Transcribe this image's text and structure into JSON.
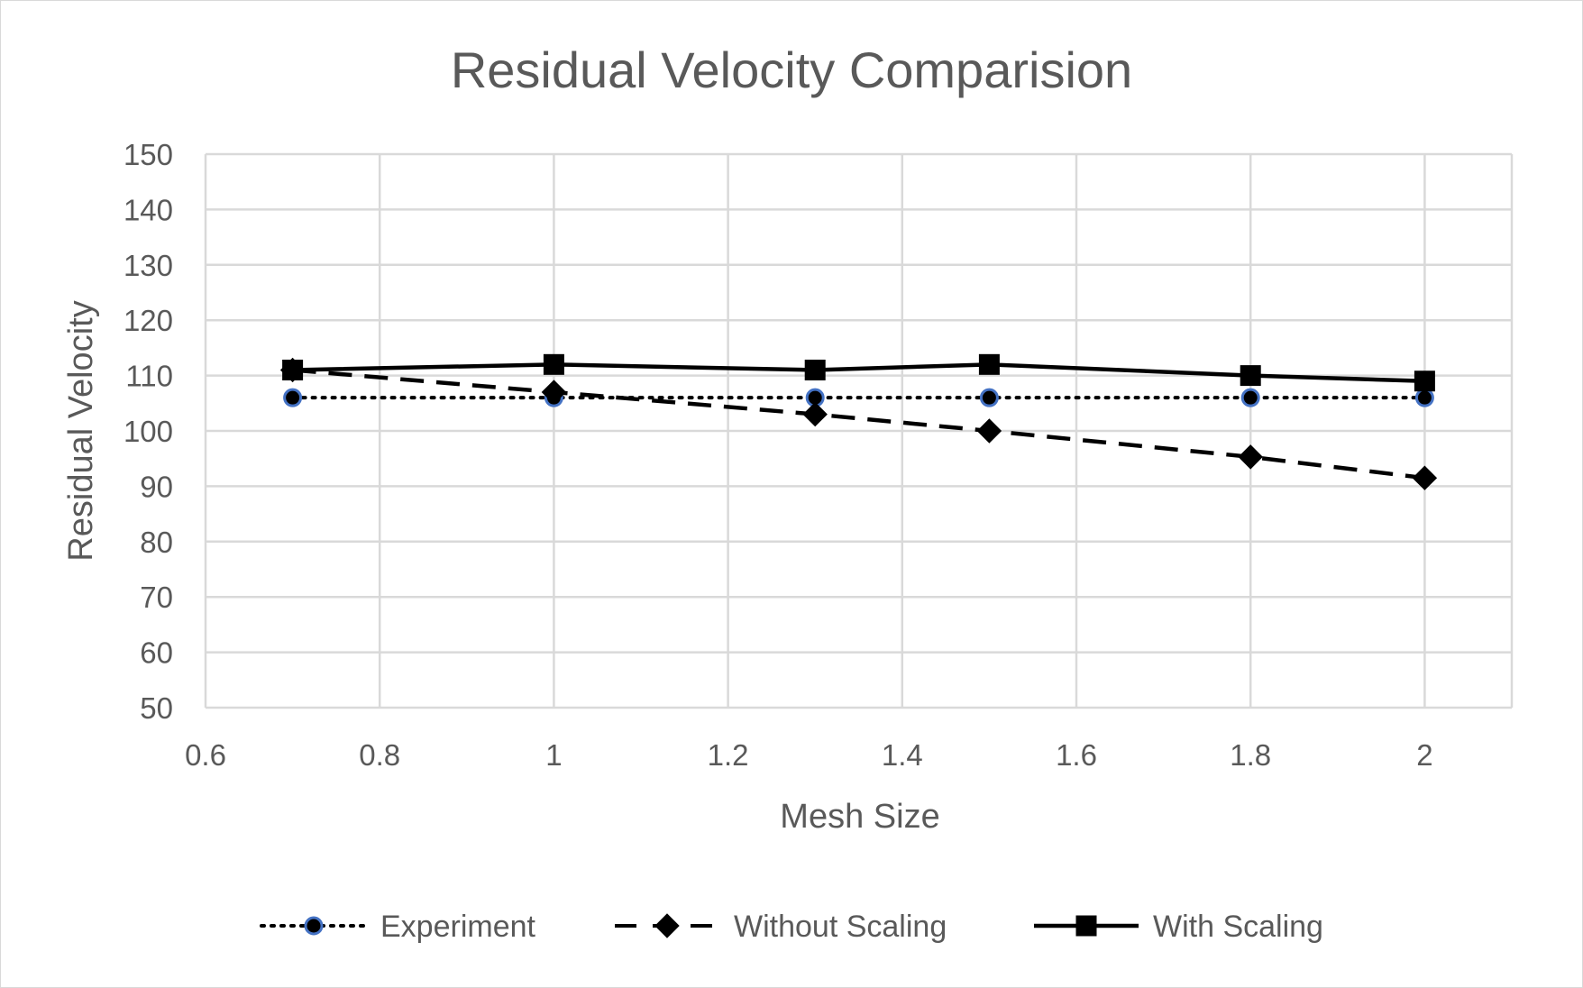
{
  "chart_data": {
    "type": "scatter",
    "title": "Residual Velocity Comparision",
    "xlabel": "Mesh Size",
    "ylabel": "Residual Velocity",
    "xlim": [
      0.6,
      2.1
    ],
    "ylim": [
      50,
      150
    ],
    "xticks": [
      0.6,
      0.8,
      1,
      1.2,
      1.4,
      1.6,
      1.8,
      2
    ],
    "xtick_labels": [
      "0.6",
      "0.8",
      "1",
      "1.2",
      "1.4",
      "1.6",
      "1.8",
      "2"
    ],
    "yticks": [
      50,
      60,
      70,
      80,
      90,
      100,
      110,
      120,
      130,
      140,
      150
    ],
    "ytick_labels": [
      "50",
      "60",
      "70",
      "80",
      "90",
      "100",
      "110",
      "120",
      "130",
      "140",
      "150"
    ],
    "grid": true,
    "legend_position": "bottom",
    "x": [
      0.7,
      1.0,
      1.3,
      1.5,
      1.8,
      2.0
    ],
    "series": [
      {
        "name": "Experiment",
        "values": [
          106,
          106,
          106,
          106,
          106,
          106
        ],
        "line": "dotted",
        "marker": "circle",
        "marker_fill": "#000000",
        "marker_edge": "#4472c4",
        "color": "#000000"
      },
      {
        "name": "Without Scaling",
        "values": [
          111,
          107,
          103,
          100,
          95.3,
          91.5
        ],
        "line": "dashed",
        "marker": "diamond",
        "marker_fill": "#000000",
        "marker_edge": "#000000",
        "color": "#000000"
      },
      {
        "name": "With Scaling",
        "values": [
          111,
          112,
          111,
          112,
          110,
          109
        ],
        "line": "solid",
        "marker": "square",
        "marker_fill": "#000000",
        "marker_edge": "#000000",
        "color": "#000000"
      }
    ]
  },
  "colors": {
    "text": "#595959",
    "grid": "#d9d9d9",
    "series": "#000000",
    "experiment_marker_edge": "#4472c4"
  }
}
